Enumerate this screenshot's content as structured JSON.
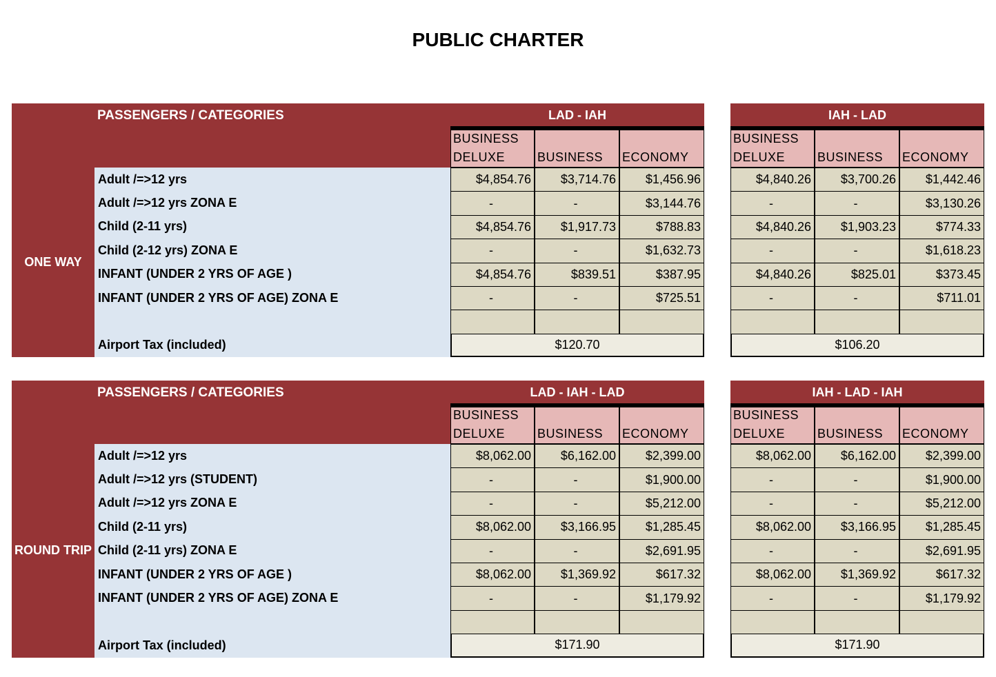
{
  "title": "PUBLIC CHARTER",
  "sections": [
    {
      "side_label": "ONE WAY",
      "header": "PASSENGERS / CATEGORIES",
      "row_labels": [
        "Adult /=>12 yrs",
        "Adult /=>12 yrs ZONA E",
        "Child (2-11 yrs)",
        "Child (2-12 yrs) ZONA E",
        "INFANT (UNDER 2 YRS OF AGE )",
        "INFANT (UNDER 2 YRS OF AGE) ZONA E",
        ""
      ],
      "tax_label": "Airport Tax (included)",
      "tables": [
        {
          "route": "LAD - IAH",
          "columns": [
            "BUSINESS\nDELUXE",
            "BUSINESS",
            "ECONOMY"
          ],
          "rows": [
            [
              "$4,854.76",
              "$3,714.76",
              "$1,456.96"
            ],
            [
              "-",
              "-",
              "$3,144.76"
            ],
            [
              "$4,854.76",
              "$1,917.73",
              "$788.83"
            ],
            [
              "-",
              "-",
              "$1,632.73"
            ],
            [
              "$4,854.76",
              "$839.51",
              "$387.95"
            ],
            [
              "-",
              "-",
              "$725.51"
            ],
            [
              "",
              "",
              ""
            ]
          ],
          "tax": "$120.70"
        },
        {
          "route": "IAH - LAD",
          "columns": [
            "BUSINESS\nDELUXE",
            "BUSINESS",
            "ECONOMY"
          ],
          "rows": [
            [
              "$4,840.26",
              "$3,700.26",
              "$1,442.46"
            ],
            [
              "-",
              "-",
              "$3,130.26"
            ],
            [
              "$4,840.26",
              "$1,903.23",
              "$774.33"
            ],
            [
              "-",
              "-",
              "$1,618.23"
            ],
            [
              "$4,840.26",
              "$825.01",
              "$373.45"
            ],
            [
              "-",
              "-",
              "$711.01"
            ],
            [
              "",
              "",
              ""
            ]
          ],
          "tax": "$106.20"
        }
      ]
    },
    {
      "side_label": "ROUND TRIP",
      "header": "PASSENGERS / CATEGORIES",
      "row_labels": [
        "Adult /=>12 yrs",
        "Adult /=>12 yrs (STUDENT)",
        "Adult /=>12 yrs ZONA E",
        "Child (2-11 yrs)",
        "Child (2-11 yrs) ZONA E",
        "INFANT (UNDER 2 YRS OF AGE )",
        "INFANT (UNDER 2 YRS OF AGE) ZONA E",
        ""
      ],
      "tax_label": "Airport Tax (included)",
      "tables": [
        {
          "route": "LAD - IAH - LAD",
          "columns": [
            "BUSINESS\nDELUXE",
            "BUSINESS",
            "ECONOMY"
          ],
          "rows": [
            [
              "$8,062.00",
              "$6,162.00",
              "$2,399.00"
            ],
            [
              "-",
              "-",
              "$1,900.00"
            ],
            [
              "-",
              "-",
              "$5,212.00"
            ],
            [
              "$8,062.00",
              "$3,166.95",
              "$1,285.45"
            ],
            [
              "-",
              "-",
              "$2,691.95"
            ],
            [
              "$8,062.00",
              "$1,369.92",
              "$617.32"
            ],
            [
              "-",
              "-",
              "$1,179.92"
            ],
            [
              "",
              "",
              ""
            ]
          ],
          "tax": "$171.90"
        },
        {
          "route": "IAH - LAD - IAH",
          "columns": [
            "BUSINESS\nDELUXE",
            "BUSINESS",
            "ECONOMY"
          ],
          "rows": [
            [
              "$8,062.00",
              "$6,162.00",
              "$2,399.00"
            ],
            [
              "-",
              "-",
              "$1,900.00"
            ],
            [
              "-",
              "-",
              "$5,212.00"
            ],
            [
              "$8,062.00",
              "$3,166.95",
              "$1,285.45"
            ],
            [
              "-",
              "-",
              "$2,691.95"
            ],
            [
              "$8,062.00",
              "$1,369.92",
              "$617.32"
            ],
            [
              "-",
              "-",
              "$1,179.92"
            ],
            [
              "",
              "",
              ""
            ]
          ],
          "tax": "$171.90"
        }
      ]
    }
  ],
  "colors": {
    "brand_red": "#963436",
    "header_pink": "#e6b8b7",
    "cell_tan": "#ddd9c4",
    "label_blue": "#dce6f1",
    "tax_bg": "#eeece1"
  }
}
